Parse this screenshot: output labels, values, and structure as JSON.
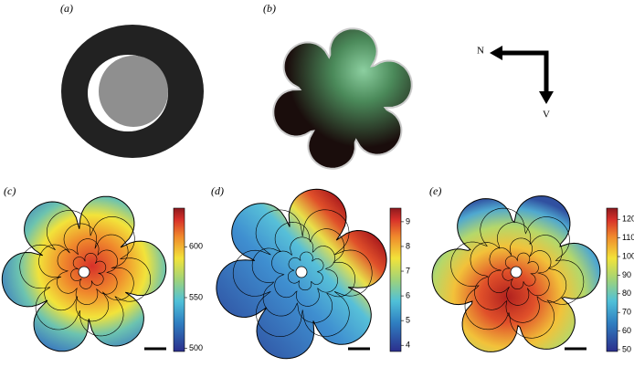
{
  "panels": [
    {
      "label": "(a)"
    },
    {
      "label": "(b)"
    },
    {
      "label": "(c)"
    },
    {
      "label": "(d)"
    },
    {
      "label": "(e)"
    }
  ],
  "compass": {
    "north": "N",
    "ventral": "V"
  },
  "colorbars": [
    {
      "lim": [
        497,
        638
      ],
      "ticks": [
        500,
        550,
        600
      ]
    },
    {
      "lim": [
        3.75,
        9.55
      ],
      "ticks": [
        4,
        5,
        6,
        7,
        8,
        9
      ]
    },
    {
      "lim": [
        49,
        126
      ],
      "ticks": [
        50,
        60,
        70,
        80,
        90,
        100,
        110,
        120
      ]
    }
  ]
}
